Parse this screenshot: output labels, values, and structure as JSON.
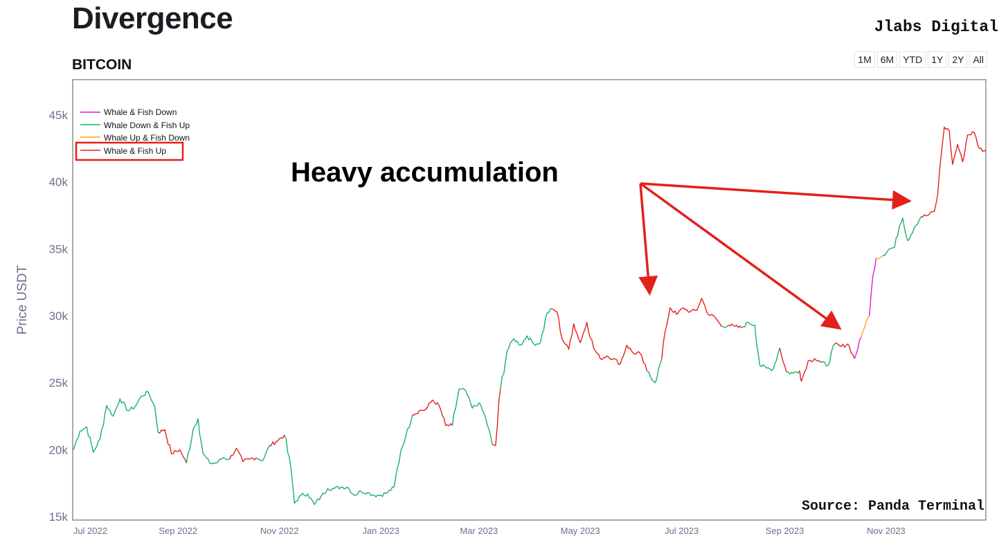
{
  "header": {
    "title": "Divergence",
    "subtitle": "BITCOIN",
    "brand": "Jlabs Digital",
    "source": "Source: Panda Terminal"
  },
  "range_buttons": [
    "1M",
    "6M",
    "YTD",
    "1Y",
    "2Y",
    "All"
  ],
  "colors": {
    "whale_fish_down": "#d21fd8",
    "whale_down_fish_up": "#1aaf6c",
    "whale_up_fish_down": "#f5a623",
    "whale_fish_up": "#e3201b",
    "annotation": "#e3201b"
  },
  "chart_data": {
    "type": "line",
    "title": "",
    "ylabel": "Price USDT",
    "xlabel": "",
    "ylim": [
      15000,
      47000
    ],
    "xlim": [
      "2022-06-30",
      "2023-12-31"
    ],
    "grid": false,
    "legend_position": "top-left",
    "x_ticks": [
      "Jul 2022",
      "Sep 2022",
      "Nov 2022",
      "Jan 2023",
      "Mar 2023",
      "May 2023",
      "Jul 2023",
      "Sep 2023",
      "Nov 2023"
    ],
    "y_ticks": [
      "15k",
      "20k",
      "25k",
      "30k",
      "35k",
      "40k",
      "45k"
    ],
    "annotation": "Heavy accumulation",
    "series": [
      {
        "name": "Whale & Fish Down",
        "color": "#d21fd8"
      },
      {
        "name": "Whale Down & Fish Up",
        "color": "#1aaf6c"
      },
      {
        "name": "Whale Up & Fish Down",
        "color": "#f5a623"
      },
      {
        "name": "Whale & Fish Up",
        "color": "#e3201b"
      }
    ],
    "price_points": [
      [
        "2022-06-30",
        20000,
        1
      ],
      [
        "2022-07-04",
        21400,
        1
      ],
      [
        "2022-07-08",
        21700,
        1
      ],
      [
        "2022-07-12",
        19800,
        1
      ],
      [
        "2022-07-16",
        20800,
        1
      ],
      [
        "2022-07-20",
        23300,
        1
      ],
      [
        "2022-07-24",
        22500,
        1
      ],
      [
        "2022-07-28",
        23800,
        1
      ],
      [
        "2022-08-02",
        22900,
        1
      ],
      [
        "2022-08-06",
        23200,
        1
      ],
      [
        "2022-08-10",
        24000,
        1
      ],
      [
        "2022-08-14",
        24300,
        1
      ],
      [
        "2022-08-18",
        23200,
        1
      ],
      [
        "2022-08-20",
        21300,
        3
      ],
      [
        "2022-08-24",
        21500,
        3
      ],
      [
        "2022-08-28",
        19700,
        3
      ],
      [
        "2022-09-02",
        20000,
        3
      ],
      [
        "2022-09-06",
        19000,
        1
      ],
      [
        "2022-09-10",
        21500,
        1
      ],
      [
        "2022-09-13",
        22300,
        1
      ],
      [
        "2022-09-16",
        19700,
        1
      ],
      [
        "2022-09-20",
        19000,
        1
      ],
      [
        "2022-09-24",
        19000,
        1
      ],
      [
        "2022-09-28",
        19400,
        1
      ],
      [
        "2022-10-02",
        19300,
        3
      ],
      [
        "2022-10-06",
        20100,
        3
      ],
      [
        "2022-10-10",
        19100,
        3
      ],
      [
        "2022-10-14",
        19300,
        3
      ],
      [
        "2022-10-18",
        19400,
        1
      ],
      [
        "2022-10-22",
        19200,
        1
      ],
      [
        "2022-10-26",
        20300,
        3
      ],
      [
        "2022-10-30",
        20600,
        3
      ],
      [
        "2022-11-04",
        21100,
        1
      ],
      [
        "2022-11-08",
        18500,
        1
      ],
      [
        "2022-11-10",
        16000,
        1
      ],
      [
        "2022-11-14",
        16600,
        1
      ],
      [
        "2022-11-18",
        16700,
        1
      ],
      [
        "2022-11-22",
        15900,
        1
      ],
      [
        "2022-11-26",
        16500,
        1
      ],
      [
        "2022-11-30",
        17100,
        1
      ],
      [
        "2022-12-04",
        17100,
        1
      ],
      [
        "2022-12-08",
        17200,
        1
      ],
      [
        "2022-12-12",
        17200,
        1
      ],
      [
        "2022-12-16",
        16600,
        1
      ],
      [
        "2022-12-20",
        16900,
        1
      ],
      [
        "2022-12-24",
        16800,
        1
      ],
      [
        "2022-12-28",
        16600,
        1
      ],
      [
        "2023-01-01",
        16600,
        1
      ],
      [
        "2023-01-05",
        16800,
        1
      ],
      [
        "2023-01-09",
        17200,
        1
      ],
      [
        "2023-01-13",
        19900,
        1
      ],
      [
        "2023-01-16",
        21000,
        1
      ],
      [
        "2023-01-20",
        22600,
        3
      ],
      [
        "2023-01-24",
        22900,
        3
      ],
      [
        "2023-01-28",
        23000,
        3
      ],
      [
        "2023-02-01",
        23700,
        3
      ],
      [
        "2023-02-05",
        23300,
        3
      ],
      [
        "2023-02-09",
        21800,
        3
      ],
      [
        "2023-02-13",
        21800,
        1
      ],
      [
        "2023-02-17",
        24500,
        1
      ],
      [
        "2023-02-21",
        24400,
        1
      ],
      [
        "2023-02-25",
        23100,
        1
      ],
      [
        "2023-03-01",
        23500,
        1
      ],
      [
        "2023-03-05",
        22400,
        1
      ],
      [
        "2023-03-09",
        20400,
        3
      ],
      [
        "2023-03-11",
        20300,
        3
      ],
      [
        "2023-03-14",
        24600,
        1
      ],
      [
        "2023-03-18",
        27400,
        1
      ],
      [
        "2023-03-22",
        28300,
        1
      ],
      [
        "2023-03-26",
        27800,
        1
      ],
      [
        "2023-03-30",
        28500,
        1
      ],
      [
        "2023-04-03",
        27900,
        1
      ],
      [
        "2023-04-07",
        28000,
        1
      ],
      [
        "2023-04-11",
        30200,
        1
      ],
      [
        "2023-04-14",
        30500,
        3
      ],
      [
        "2023-04-17",
        30300,
        3
      ],
      [
        "2023-04-20",
        28300,
        3
      ],
      [
        "2023-04-24",
        27500,
        3
      ],
      [
        "2023-04-27",
        29400,
        3
      ],
      [
        "2023-05-01",
        28000,
        3
      ],
      [
        "2023-05-05",
        29500,
        3
      ],
      [
        "2023-05-09",
        27600,
        3
      ],
      [
        "2023-05-13",
        26800,
        3
      ],
      [
        "2023-05-17",
        27000,
        3
      ],
      [
        "2023-05-21",
        26800,
        3
      ],
      [
        "2023-05-25",
        26400,
        3
      ],
      [
        "2023-05-29",
        27800,
        3
      ],
      [
        "2023-06-02",
        27200,
        3
      ],
      [
        "2023-06-06",
        27200,
        3
      ],
      [
        "2023-06-10",
        25900,
        1
      ],
      [
        "2023-06-15",
        25000,
        1
      ],
      [
        "2023-06-19",
        26800,
        3
      ],
      [
        "2023-06-21",
        28800,
        3
      ],
      [
        "2023-06-24",
        30600,
        3
      ],
      [
        "2023-06-28",
        30100,
        3
      ],
      [
        "2023-07-02",
        30600,
        3
      ],
      [
        "2023-07-06",
        30300,
        3
      ],
      [
        "2023-07-10",
        30400,
        3
      ],
      [
        "2023-07-13",
        31300,
        3
      ],
      [
        "2023-07-17",
        30100,
        3
      ],
      [
        "2023-07-21",
        29900,
        3
      ],
      [
        "2023-07-25",
        29200,
        1
      ],
      [
        "2023-07-29",
        29300,
        3
      ],
      [
        "2023-08-02",
        29200,
        3
      ],
      [
        "2023-08-06",
        29100,
        1
      ],
      [
        "2023-08-10",
        29500,
        1
      ],
      [
        "2023-08-14",
        29300,
        1
      ],
      [
        "2023-08-17",
        26300,
        1
      ],
      [
        "2023-08-21",
        26100,
        1
      ],
      [
        "2023-08-25",
        26000,
        1
      ],
      [
        "2023-08-29",
        27600,
        3
      ],
      [
        "2023-09-02",
        25800,
        1
      ],
      [
        "2023-09-06",
        25700,
        1
      ],
      [
        "2023-09-10",
        25900,
        3
      ],
      [
        "2023-09-11",
        25100,
        3
      ],
      [
        "2023-09-15",
        26600,
        3
      ],
      [
        "2023-09-19",
        26800,
        3
      ],
      [
        "2023-09-23",
        26500,
        1
      ],
      [
        "2023-09-27",
        26300,
        1
      ],
      [
        "2023-10-01",
        27900,
        3
      ],
      [
        "2023-10-05",
        27700,
        3
      ],
      [
        "2023-10-09",
        27900,
        3
      ],
      [
        "2023-10-13",
        26800,
        0
      ],
      [
        "2023-10-17",
        28400,
        2
      ],
      [
        "2023-10-20",
        29600,
        2
      ],
      [
        "2023-10-22",
        30000,
        0
      ],
      [
        "2023-10-24",
        33000,
        0
      ],
      [
        "2023-10-26",
        34300,
        2
      ],
      [
        "2023-10-30",
        34500,
        1
      ],
      [
        "2023-11-03",
        35000,
        1
      ],
      [
        "2023-11-06",
        35100,
        1
      ],
      [
        "2023-11-09",
        36700,
        1
      ],
      [
        "2023-11-11",
        37300,
        1
      ],
      [
        "2023-11-14",
        35600,
        1
      ],
      [
        "2023-11-18",
        36600,
        1
      ],
      [
        "2023-11-22",
        37400,
        3
      ],
      [
        "2023-11-26",
        37500,
        3
      ],
      [
        "2023-11-30",
        37800,
        3
      ],
      [
        "2023-12-02",
        39000,
        3
      ],
      [
        "2023-12-04",
        41900,
        3
      ],
      [
        "2023-12-06",
        44100,
        3
      ],
      [
        "2023-12-09",
        43800,
        3
      ],
      [
        "2023-12-11",
        41300,
        3
      ],
      [
        "2023-12-14",
        42800,
        3
      ],
      [
        "2023-12-17",
        41500,
        3
      ],
      [
        "2023-12-20",
        43500,
        3
      ],
      [
        "2023-12-24",
        43700,
        3
      ],
      [
        "2023-12-27",
        42500,
        3
      ],
      [
        "2023-12-31",
        42300,
        3
      ]
    ]
  }
}
